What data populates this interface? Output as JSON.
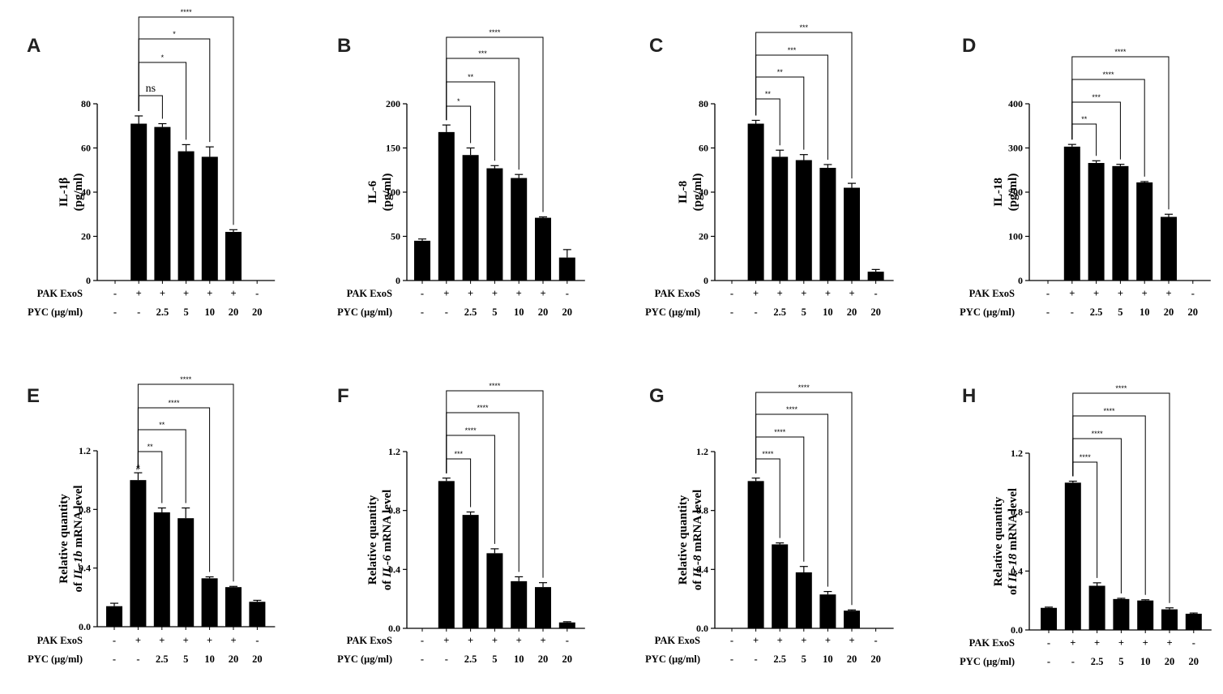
{
  "figure": {
    "rows": [
      {
        "conditions": {
          "pak_label": "PAK ExoS",
          "pyc_label": "PYC (μg/ml)",
          "pak": [
            "-",
            "+",
            "+",
            "+",
            "+",
            "+",
            "-"
          ],
          "pyc": [
            "-",
            "-",
            "2.5",
            "5",
            "10",
            "20",
            "20"
          ]
        }
      },
      {
        "conditions": {
          "pak_label": "PAK ExoS",
          "pyc_label": "PYC (μg/ml)",
          "pak": [
            "-",
            "+",
            "+",
            "+",
            "+",
            "+",
            "-"
          ],
          "pyc": [
            "-",
            "-",
            "2.5",
            "5",
            "10",
            "20",
            "20"
          ]
        }
      }
    ]
  },
  "chart_data": [
    {
      "panel": "A",
      "type": "bar",
      "ylabel_lines": [
        "IL-1β",
        "(pg/ml)"
      ],
      "ylim": [
        0,
        80
      ],
      "yticks": [
        0,
        20,
        40,
        60,
        80
      ],
      "ytick_labels": [
        "0",
        "20",
        "40",
        "60",
        "80"
      ],
      "values": [
        0,
        71,
        69.5,
        58.5,
        56,
        22,
        0
      ],
      "errors": [
        0,
        3.5,
        1.5,
        3,
        4.5,
        1,
        0
      ],
      "brackets": [
        {
          "from": 1,
          "to": 2,
          "label": "ns"
        },
        {
          "from": 1,
          "to": 3,
          "label": "*"
        },
        {
          "from": 1,
          "to": 4,
          "label": "*"
        },
        {
          "from": 1,
          "to": 5,
          "label": "****"
        }
      ],
      "marks": []
    },
    {
      "panel": "B",
      "type": "bar",
      "ylabel_lines": [
        "IL-6",
        "(pg/ml)"
      ],
      "ylim": [
        0,
        200
      ],
      "yticks": [
        0,
        50,
        100,
        150,
        200
      ],
      "ytick_labels": [
        "0",
        "50",
        "100",
        "150",
        "200"
      ],
      "values": [
        45,
        168,
        142,
        127,
        116,
        71,
        26
      ],
      "errors": [
        2,
        8,
        8,
        3,
        4,
        1,
        9
      ],
      "brackets": [
        {
          "from": 1,
          "to": 2,
          "label": "*"
        },
        {
          "from": 1,
          "to": 3,
          "label": "**"
        },
        {
          "from": 1,
          "to": 4,
          "label": "***"
        },
        {
          "from": 1,
          "to": 5,
          "label": "****"
        }
      ],
      "marks": []
    },
    {
      "panel": "C",
      "type": "bar",
      "ylabel_lines": [
        "IL-8",
        "(pg/ml)"
      ],
      "ylim": [
        0,
        80
      ],
      "yticks": [
        0,
        20,
        40,
        60,
        80
      ],
      "ytick_labels": [
        "0",
        "20",
        "40",
        "60",
        "80"
      ],
      "values": [
        0,
        71,
        56,
        54.5,
        51,
        42,
        4
      ],
      "errors": [
        0,
        1.5,
        3,
        2.5,
        1.5,
        2,
        1
      ],
      "brackets": [
        {
          "from": 1,
          "to": 2,
          "label": "**"
        },
        {
          "from": 1,
          "to": 3,
          "label": "**"
        },
        {
          "from": 1,
          "to": 4,
          "label": "***"
        },
        {
          "from": 1,
          "to": 5,
          "label": "***"
        }
      ],
      "marks": []
    },
    {
      "panel": "D",
      "type": "bar",
      "ylabel_lines": [
        "IL-18",
        "(pg/ml)"
      ],
      "ylim": [
        0,
        400
      ],
      "yticks": [
        0,
        100,
        200,
        300,
        400
      ],
      "ytick_labels": [
        "0",
        "100",
        "200",
        "300",
        "400"
      ],
      "values": [
        0,
        303,
        266,
        259,
        222,
        144,
        0
      ],
      "errors": [
        0,
        5,
        5,
        4,
        2,
        6,
        0
      ],
      "brackets": [
        {
          "from": 1,
          "to": 2,
          "label": "**"
        },
        {
          "from": 1,
          "to": 3,
          "label": "***"
        },
        {
          "from": 1,
          "to": 4,
          "label": "****"
        },
        {
          "from": 1,
          "to": 5,
          "label": "****"
        }
      ],
      "marks": []
    },
    {
      "panel": "E",
      "type": "bar",
      "ylabel_lines": [
        "Relative quantity",
        "of IL-1b mRNA level"
      ],
      "ylabel_italic": "IL-1b",
      "ylim": [
        0,
        1.2
      ],
      "yticks": [
        0,
        0.4,
        0.8,
        1.2
      ],
      "ytick_labels": [
        "0.0",
        "0.4",
        "0.8",
        "1.2"
      ],
      "values": [
        0.14,
        1.0,
        0.78,
        0.74,
        0.33,
        0.27,
        0.17
      ],
      "errors": [
        0.02,
        0.05,
        0.03,
        0.07,
        0.01,
        0.005,
        0.01
      ],
      "brackets": [
        {
          "from": 1,
          "to": 2,
          "label": "**"
        },
        {
          "from": 1,
          "to": 3,
          "label": "**"
        },
        {
          "from": 1,
          "to": 4,
          "label": "****"
        },
        {
          "from": 1,
          "to": 5,
          "label": "****"
        }
      ],
      "marks": [
        {
          "bar": 1,
          "label": "#"
        }
      ]
    },
    {
      "panel": "F",
      "type": "bar",
      "ylabel_lines": [
        "Relative quantity",
        "of IL-6 mRNA level"
      ],
      "ylabel_italic": "IL-6",
      "ylim": [
        0,
        1.2
      ],
      "yticks": [
        0,
        0.4,
        0.8,
        1.2
      ],
      "ytick_labels": [
        "0.0",
        "0.4",
        "0.8",
        "1.2"
      ],
      "values": [
        0,
        1.0,
        0.77,
        0.51,
        0.32,
        0.28,
        0.04
      ],
      "errors": [
        0,
        0.02,
        0.02,
        0.03,
        0.03,
        0.03,
        0.005
      ],
      "brackets": [
        {
          "from": 1,
          "to": 2,
          "label": "***"
        },
        {
          "from": 1,
          "to": 3,
          "label": "****"
        },
        {
          "from": 1,
          "to": 4,
          "label": "****"
        },
        {
          "from": 1,
          "to": 5,
          "label": "****"
        }
      ],
      "marks": []
    },
    {
      "panel": "G",
      "type": "bar",
      "ylabel_lines": [
        "Relative quantity",
        "of IL-8 mRNA level"
      ],
      "ylabel_italic": "IL-8",
      "ylim": [
        0,
        1.2
      ],
      "yticks": [
        0,
        0.4,
        0.8,
        1.2
      ],
      "ytick_labels": [
        "0.0",
        "0.4",
        "0.8",
        "1.2"
      ],
      "values": [
        0,
        1.0,
        0.57,
        0.38,
        0.23,
        0.12,
        0
      ],
      "errors": [
        0,
        0.02,
        0.01,
        0.04,
        0.02,
        0.005,
        0
      ],
      "brackets": [
        {
          "from": 1,
          "to": 2,
          "label": "****"
        },
        {
          "from": 1,
          "to": 3,
          "label": "****"
        },
        {
          "from": 1,
          "to": 4,
          "label": "****"
        },
        {
          "from": 1,
          "to": 5,
          "label": "****"
        }
      ],
      "marks": []
    },
    {
      "panel": "H",
      "type": "bar",
      "ylabel_lines": [
        "Relative quantity",
        "of IL-18 mRNA level"
      ],
      "ylabel_italic": "IL-18",
      "ylim": [
        0,
        1.2
      ],
      "yticks": [
        0,
        0.4,
        0.8,
        1.2
      ],
      "ytick_labels": [
        "0.0",
        "0.4",
        "0.8",
        "1.2"
      ],
      "values": [
        0.15,
        1.0,
        0.3,
        0.21,
        0.2,
        0.14,
        0.11
      ],
      "errors": [
        0.005,
        0.01,
        0.02,
        0.005,
        0.005,
        0.01,
        0.005
      ],
      "brackets": [
        {
          "from": 1,
          "to": 2,
          "label": "****"
        },
        {
          "from": 1,
          "to": 3,
          "label": "****"
        },
        {
          "from": 1,
          "to": 4,
          "label": "****"
        },
        {
          "from": 1,
          "to": 5,
          "label": "****"
        }
      ],
      "marks": []
    }
  ]
}
